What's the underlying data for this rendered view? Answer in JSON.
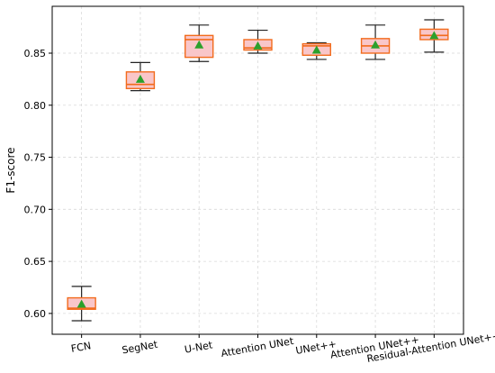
{
  "chart_data": {
    "type": "box",
    "title": "",
    "xlabel": "",
    "ylabel": "F1-score",
    "ylim": [
      0.58,
      0.895
    ],
    "yticks": [
      0.6,
      0.65,
      0.7,
      0.75,
      0.8,
      0.85
    ],
    "ytick_labels": [
      "0.60",
      "0.65",
      "0.70",
      "0.75",
      "0.80",
      "0.85"
    ],
    "grid": true,
    "categories": [
      "FCN",
      "SegNet",
      "U-Net",
      "Attention UNet",
      "UNet++",
      "Attention UNet++",
      "Residual-Attention UNet++"
    ],
    "boxes": [
      {
        "whisker_low": 0.593,
        "q1": 0.604,
        "median": 0.605,
        "q3": 0.615,
        "whisker_high": 0.626,
        "mean": 0.609
      },
      {
        "whisker_low": 0.814,
        "q1": 0.816,
        "median": 0.82,
        "q3": 0.832,
        "whisker_high": 0.841,
        "mean": 0.825
      },
      {
        "whisker_low": 0.842,
        "q1": 0.846,
        "median": 0.863,
        "q3": 0.867,
        "whisker_high": 0.877,
        "mean": 0.858
      },
      {
        "whisker_low": 0.85,
        "q1": 0.853,
        "median": 0.855,
        "q3": 0.863,
        "whisker_high": 0.872,
        "mean": 0.857
      },
      {
        "whisker_low": 0.844,
        "q1": 0.848,
        "median": 0.857,
        "q3": 0.859,
        "whisker_high": 0.86,
        "mean": 0.853
      },
      {
        "whisker_low": 0.844,
        "q1": 0.85,
        "median": 0.857,
        "q3": 0.864,
        "whisker_high": 0.877,
        "mean": 0.858
      },
      {
        "whisker_low": 0.851,
        "q1": 0.863,
        "median": 0.867,
        "q3": 0.873,
        "whisker_high": 0.882,
        "mean": 0.867
      }
    ],
    "colors": {
      "box_fill": "#f9c6c9",
      "box_edge": "#f26b1d",
      "median": "#f26b1d",
      "whisker": "#222222",
      "mean_marker": "#2ca02c"
    }
  }
}
